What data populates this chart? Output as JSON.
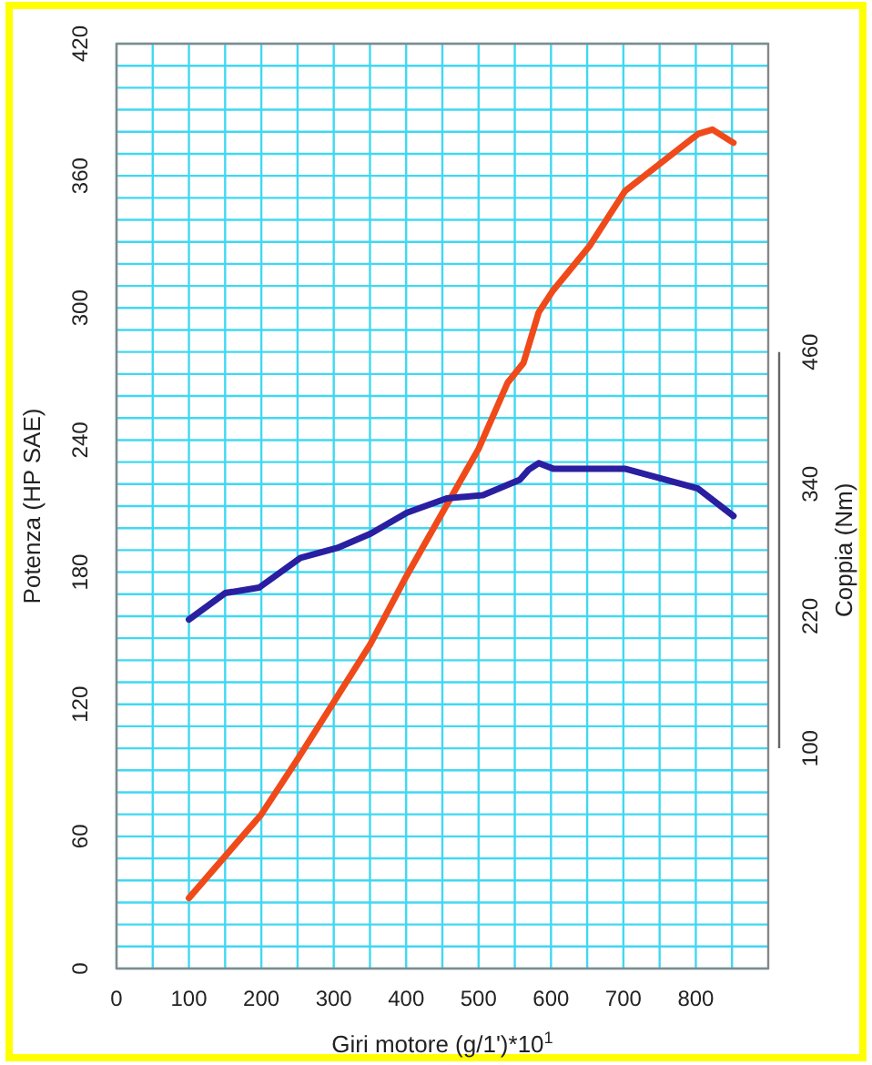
{
  "chart_data": {
    "type": "line",
    "xlabel": "Giri motore (g/1')*10$^{1}$",
    "ylabel": "Potenza (HP SAE)",
    "y2label": "Coppia (Nm)",
    "xlim": [
      0,
      900
    ],
    "xticks": [
      0,
      {
        "value": 50,
        "label": null
      },
      100,
      {
        "value": 150,
        "label": null
      },
      200,
      {
        "value": 250,
        "label": null
      },
      300,
      {
        "value": 350,
        "label": null
      },
      400,
      {
        "value": 450,
        "label": null
      },
      500,
      {
        "value": 550,
        "label": null
      },
      600,
      {
        "value": 650,
        "label": null
      },
      700,
      {
        "value": 750,
        "label": null
      },
      800,
      {
        "value": 850,
        "label": null
      }
    ],
    "ylim": [
      0,
      420
    ],
    "yticks": [
      0,
      {
        "value": 10,
        "label": null
      },
      {
        "value": 20,
        "label": null
      },
      {
        "value": 30,
        "label": null
      },
      {
        "value": 40,
        "label": null
      },
      {
        "value": 50,
        "label": null
      },
      60,
      {
        "value": 70,
        "label": null
      },
      {
        "value": 80,
        "label": null
      },
      {
        "value": 90,
        "label": null
      },
      {
        "value": 100,
        "label": null
      },
      {
        "value": 110,
        "label": null
      },
      120,
      {
        "value": 130,
        "label": null
      },
      {
        "value": 140,
        "label": null
      },
      {
        "value": 150,
        "label": null
      },
      {
        "value": 160,
        "label": null
      },
      {
        "value": 170,
        "label": null
      },
      180,
      {
        "value": 190,
        "label": null
      },
      {
        "value": 200,
        "label": null
      },
      {
        "value": 210,
        "label": null
      },
      {
        "value": 220,
        "label": null
      },
      {
        "value": 230,
        "label": null
      },
      240,
      {
        "value": 250,
        "label": null
      },
      {
        "value": 260,
        "label": null
      },
      {
        "value": 270,
        "label": null
      },
      {
        "value": 280,
        "label": null
      },
      {
        "value": 290,
        "label": null
      },
      300,
      {
        "value": 310,
        "label": null
      },
      {
        "value": 320,
        "label": null
      },
      {
        "value": 330,
        "label": null
      },
      {
        "value": 340,
        "label": null
      },
      {
        "value": 350,
        "label": null
      },
      360,
      {
        "value": 370,
        "label": null
      },
      {
        "value": 380,
        "label": null
      },
      {
        "value": 390,
        "label": null
      },
      {
        "value": 400,
        "label": null
      },
      {
        "value": 410,
        "label": null
      },
      420
    ],
    "y2lim": [
      -100,
      740
    ],
    "y2ticks": [
      100,
      220,
      340,
      460
    ],
    "grid": true,
    "marker": "none",
    "line_style": "solid",
    "series": [
      {
        "color": "#f04a1a",
        "x": [
          100,
          150,
          200,
          250,
          300,
          350,
          400,
          450,
          500,
          540,
          562,
          583,
          603,
          653,
          702,
          803,
          823,
          852
        ],
        "values": [
          32,
          51,
          70,
          95,
          121,
          147,
          178,
          207,
          236,
          266,
          275,
          298,
          308,
          328,
          353,
          379,
          381,
          375
        ]
      },
      {
        "color": "#2a1fa0",
        "axis": "y2",
        "x": [
          100,
          150,
          197,
          254,
          305,
          351,
          401,
          456,
          506,
          557,
          569,
          583,
          603,
          702,
          803,
          852
        ],
        "values": [
          217,
          241,
          246,
          273,
          282,
          295,
          314,
          327,
          330,
          344,
          353,
          359,
          354,
          354,
          336,
          311
        ]
      }
    ]
  }
}
